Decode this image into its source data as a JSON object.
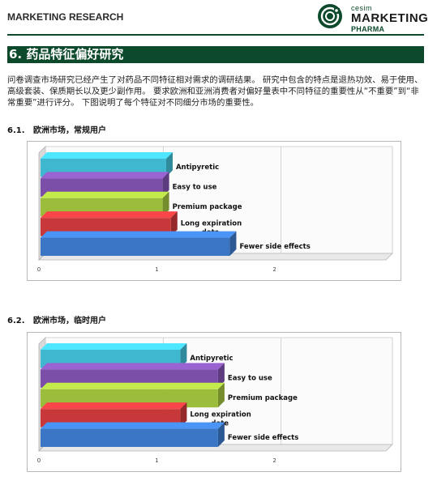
{
  "header": {
    "label": "MARKETING RESEARCH",
    "logo": {
      "word_small": "cesim",
      "word_big": "MARKETING",
      "word_sub": "PHARMA"
    }
  },
  "section": {
    "title": "6. 药品特征偏好研究",
    "intro": "问卷调查市场研究已经产生了对药品不同特征相对需求的调研结果。 研究中包含的特点是退热功效、易于使用、高级套装、保质期长以及更少副作用。 要求欧洲和亚洲消费者对偏好量表中不同特征的重要性从“不重要”到“非常重要”进行评分。 下图说明了每个特征对不同细分市场的重要性。"
  },
  "subsections": [
    {
      "number": "6.1.",
      "title": "欧洲市场，常规用户"
    },
    {
      "number": "6.2.",
      "title": "欧洲市场，临时用户"
    }
  ],
  "colors": {
    "brand": "#0d4a2b",
    "series": [
      "#3fb8cf",
      "#7b4fa8",
      "#9cbc3c",
      "#c8373a",
      "#3b76c4"
    ]
  },
  "chart_data": [
    {
      "type": "bar",
      "orientation": "horizontal",
      "categories": [
        "Antipyretic",
        "Easy to use",
        "Premium package",
        "Long expiration date",
        "Fewer side effects"
      ],
      "values": [
        1.08,
        1.05,
        1.05,
        1.12,
        1.62
      ],
      "xlim": [
        0,
        3
      ],
      "xticks": [
        "0",
        "1",
        "2"
      ],
      "grid": true
    },
    {
      "type": "bar",
      "orientation": "horizontal",
      "categories": [
        "Antipyretic",
        "Easy to use",
        "Premium package",
        "Long expiration date",
        "Fewer side effects"
      ],
      "values": [
        1.2,
        1.52,
        1.52,
        1.2,
        1.52
      ],
      "xlim": [
        0,
        3
      ],
      "xticks": [
        "0",
        "1",
        "2"
      ],
      "grid": true
    }
  ]
}
